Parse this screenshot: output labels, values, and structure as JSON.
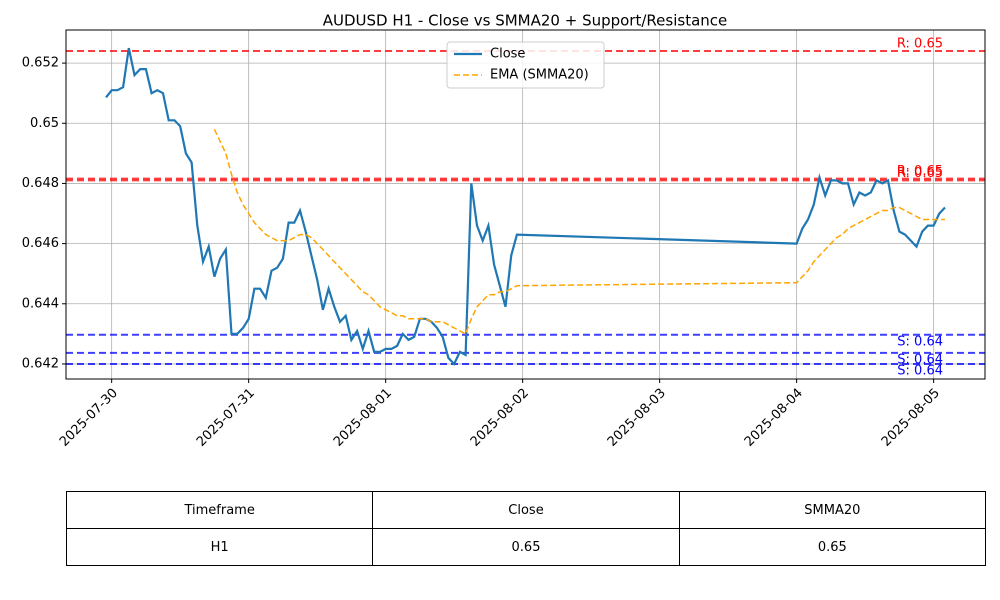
{
  "chart_data": {
    "type": "line",
    "title": "AUDUSD H1 - Close vs SMMA20 + Support/Resistance",
    "x": [
      "2025-07-29 23:00",
      "2025-07-30 00:00",
      "2025-07-30 01:00",
      "2025-07-30 02:00",
      "2025-07-30 03:00",
      "2025-07-30 04:00",
      "2025-07-30 05:00",
      "2025-07-30 06:00",
      "2025-07-30 07:00",
      "2025-07-30 08:00",
      "2025-07-30 09:00",
      "2025-07-30 10:00",
      "2025-07-30 11:00",
      "2025-07-30 12:00",
      "2025-07-30 13:00",
      "2025-07-30 14:00",
      "2025-07-30 15:00",
      "2025-07-30 16:00",
      "2025-07-30 17:00",
      "2025-07-30 18:00",
      "2025-07-30 19:00",
      "2025-07-30 20:00",
      "2025-07-30 21:00",
      "2025-07-30 22:00",
      "2025-07-30 23:00",
      "2025-07-31 00:00",
      "2025-07-31 01:00",
      "2025-07-31 02:00",
      "2025-07-31 03:00",
      "2025-07-31 04:00",
      "2025-07-31 05:00",
      "2025-07-31 06:00",
      "2025-07-31 07:00",
      "2025-07-31 08:00",
      "2025-07-31 09:00",
      "2025-07-31 10:00",
      "2025-07-31 11:00",
      "2025-07-31 12:00",
      "2025-07-31 13:00",
      "2025-07-31 14:00",
      "2025-07-31 15:00",
      "2025-07-31 16:00",
      "2025-07-31 17:00",
      "2025-07-31 18:00",
      "2025-07-31 19:00",
      "2025-07-31 20:00",
      "2025-07-31 21:00",
      "2025-07-31 22:00",
      "2025-07-31 23:00",
      "2025-08-01 00:00",
      "2025-08-01 01:00",
      "2025-08-01 02:00",
      "2025-08-01 03:00",
      "2025-08-01 04:00",
      "2025-08-01 05:00",
      "2025-08-01 06:00",
      "2025-08-01 07:00",
      "2025-08-01 08:00",
      "2025-08-01 09:00",
      "2025-08-01 10:00",
      "2025-08-01 11:00",
      "2025-08-01 12:00",
      "2025-08-01 13:00",
      "2025-08-01 14:00",
      "2025-08-01 15:00",
      "2025-08-01 16:00",
      "2025-08-01 17:00",
      "2025-08-01 18:00",
      "2025-08-01 19:00",
      "2025-08-01 20:00",
      "2025-08-01 21:00",
      "2025-08-01 22:00",
      "2025-08-01 23:00",
      "2025-08-04 00:00",
      "2025-08-04 01:00",
      "2025-08-04 02:00",
      "2025-08-04 03:00",
      "2025-08-04 04:00",
      "2025-08-04 05:00",
      "2025-08-04 06:00",
      "2025-08-04 07:00",
      "2025-08-04 08:00",
      "2025-08-04 09:00",
      "2025-08-04 10:00",
      "2025-08-04 11:00",
      "2025-08-04 12:00",
      "2025-08-04 13:00",
      "2025-08-04 14:00",
      "2025-08-04 15:00",
      "2025-08-04 16:00",
      "2025-08-04 17:00",
      "2025-08-04 18:00",
      "2025-08-04 19:00",
      "2025-08-04 20:00",
      "2025-08-04 21:00",
      "2025-08-04 22:00",
      "2025-08-04 23:00",
      "2025-08-05 00:00",
      "2025-08-05 01:00",
      "2025-08-05 02:00"
    ],
    "series": [
      {
        "name": "Close",
        "color": "#1f77b4",
        "dash": false,
        "values": [
          0.65086,
          0.6511,
          0.6511,
          0.6512,
          0.6525,
          0.6516,
          0.6518,
          0.6518,
          0.651,
          0.6511,
          0.651,
          0.6501,
          0.6501,
          0.6499,
          0.649,
          0.6487,
          0.6466,
          0.6454,
          0.6459,
          0.6449,
          0.6455,
          0.6458,
          0.643,
          0.643,
          0.6432,
          0.6435,
          0.6445,
          0.6445,
          0.6442,
          0.6451,
          0.6452,
          0.6455,
          0.6467,
          0.6467,
          0.6471,
          0.6464,
          0.6456,
          0.6448,
          0.6438,
          0.6445,
          0.6439,
          0.6434,
          0.6436,
          0.6428,
          0.6431,
          0.6425,
          0.6431,
          0.6424,
          0.6424,
          0.6425,
          0.6425,
          0.6426,
          0.643,
          0.6428,
          0.6429,
          0.6435,
          0.6435,
          0.6434,
          0.6432,
          0.6429,
          0.6422,
          0.642,
          0.6424,
          0.6423,
          0.648,
          0.6466,
          0.6461,
          0.6466,
          0.6453,
          0.6446,
          0.6439,
          0.6456,
          0.6463,
          0.646,
          0.6465,
          0.6468,
          0.6473,
          0.6482,
          0.6476,
          0.6481,
          0.6481,
          0.648,
          0.648,
          0.6473,
          0.6477,
          0.6476,
          0.6477,
          0.6481,
          0.648,
          0.6481,
          0.6471,
          0.6464,
          0.6463,
          0.6461,
          0.6459,
          0.6464,
          0.6466,
          0.6466,
          0.647,
          0.6472
        ]
      },
      {
        "name": "EMA (SMMA20)",
        "color": "#ffa500",
        "dash": true,
        "values": [
          null,
          null,
          null,
          null,
          null,
          null,
          null,
          null,
          null,
          null,
          null,
          null,
          null,
          null,
          null,
          null,
          null,
          null,
          null,
          0.6498,
          0.6494,
          0.649,
          0.6483,
          0.6477,
          0.6473,
          0.647,
          0.6467,
          0.6465,
          0.6463,
          0.6462,
          0.6461,
          0.6461,
          0.6461,
          0.6462,
          0.6463,
          0.6463,
          0.6462,
          0.646,
          0.6458,
          0.6456,
          0.6454,
          0.6452,
          0.645,
          0.6448,
          0.6446,
          0.6444,
          0.6443,
          0.6441,
          0.6439,
          0.6438,
          0.6437,
          0.6436,
          0.6436,
          0.6435,
          0.6435,
          0.6435,
          0.6435,
          0.6434,
          0.6434,
          0.6434,
          0.6433,
          0.6432,
          0.6431,
          0.643,
          0.6435,
          0.6439,
          0.6441,
          0.6443,
          0.6443,
          0.6444,
          0.6444,
          0.6445,
          0.6446,
          0.6447,
          0.6449,
          0.6451,
          0.6454,
          0.6456,
          0.6458,
          0.646,
          0.6462,
          0.6463,
          0.6465,
          0.6466,
          0.6467,
          0.6468,
          0.6469,
          0.647,
          0.6471,
          0.6471,
          0.6472,
          0.6472,
          0.6471,
          0.647,
          0.6469,
          0.6468,
          0.6468,
          0.6468,
          0.6468,
          0.6468
        ]
      }
    ],
    "hlines": [
      {
        "value": 0.6524,
        "label": "R: 0.65",
        "color": "#ff0000",
        "kind": "resistance"
      },
      {
        "value": 0.64816,
        "label": "R: 0.65",
        "color": "#ff0000",
        "kind": "resistance"
      },
      {
        "value": 0.6481,
        "label": "R: 0.65",
        "color": "#ff0000",
        "kind": "resistance"
      },
      {
        "value": 0.64297,
        "label": "S: 0.64",
        "color": "#0000ff",
        "kind": "support"
      },
      {
        "value": 0.64237,
        "label": "S: 0.64",
        "color": "#0000ff",
        "kind": "support"
      },
      {
        "value": 0.642,
        "label": "S: 0.64",
        "color": "#0000ff",
        "kind": "support"
      }
    ],
    "xlim": [
      "2025-07-29 16:00",
      "2025-08-05 09:00"
    ],
    "xticks": [
      "2025-07-30",
      "2025-07-31",
      "2025-08-01",
      "2025-08-02",
      "2025-08-03",
      "2025-08-04",
      "2025-08-05"
    ],
    "ylim": [
      0.6415,
      0.6531
    ],
    "yticks": [
      0.642,
      0.644,
      0.646,
      0.648,
      0.65,
      0.652
    ],
    "grid": true,
    "legend": "upper center"
  },
  "table": {
    "columns": [
      "Timeframe",
      "Close",
      "SMMA20"
    ],
    "rows": [
      [
        "H1",
        "0.65",
        "0.65"
      ]
    ]
  }
}
